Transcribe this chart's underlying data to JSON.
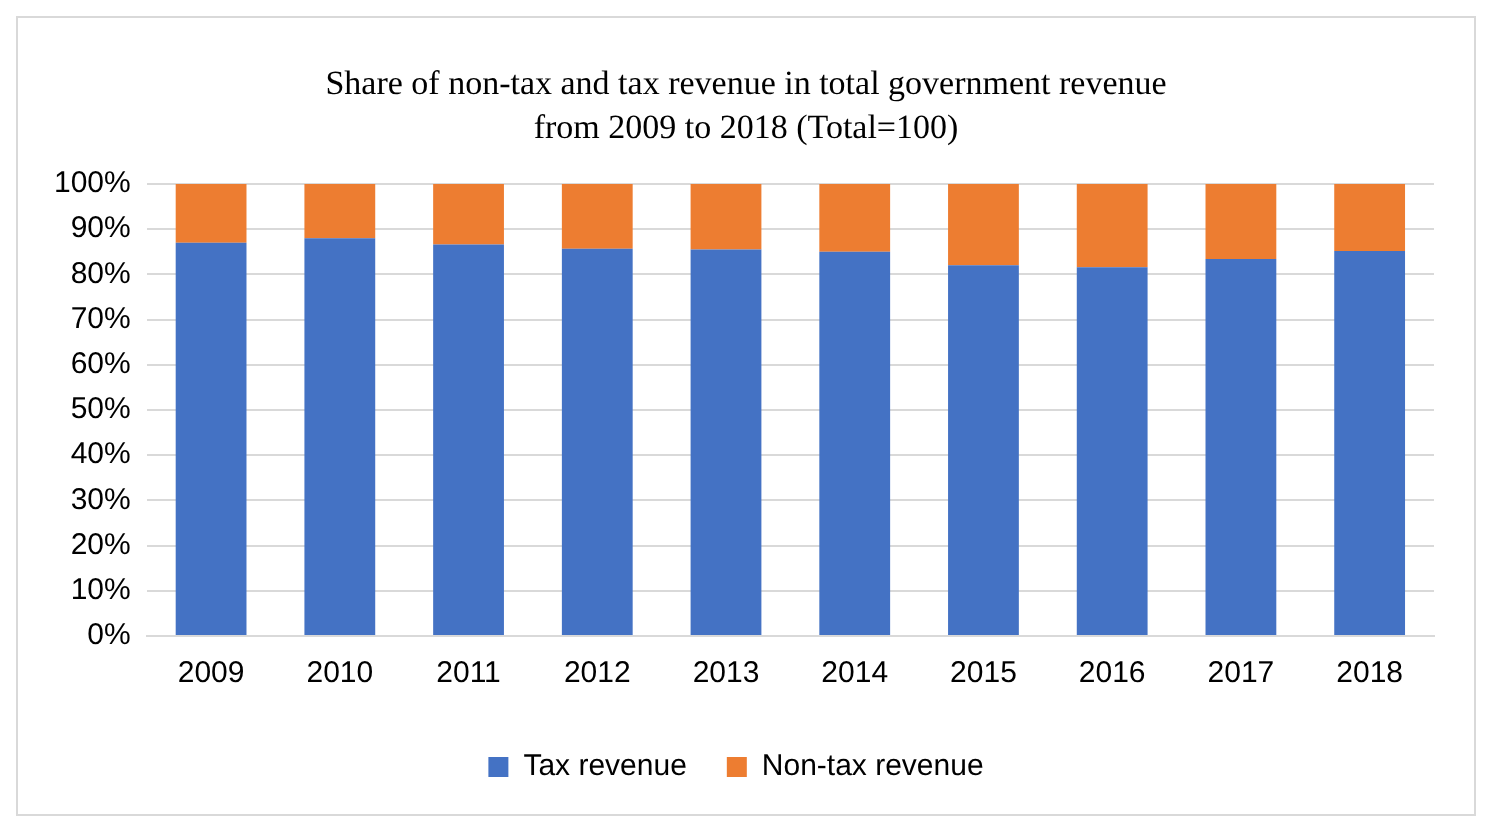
{
  "chart_data": {
    "type": "bar",
    "title": "Share of non-tax and tax revenue in total government revenue from 2009 to 2018 (Total=100)",
    "categories": [
      "2009",
      "2010",
      "2011",
      "2012",
      "2013",
      "2014",
      "2015",
      "2016",
      "2017",
      "2018"
    ],
    "stacked": true,
    "series": [
      {
        "name": "Tax revenue",
        "color": "#4472c4",
        "values": [
          87,
          88,
          86.6,
          85.7,
          85.5,
          85,
          82,
          81.6,
          83.4,
          85.2
        ]
      },
      {
        "name": "Non-tax revenue",
        "color": "#ed7d31",
        "values": [
          13,
          12,
          13.4,
          14.3,
          14.5,
          15,
          18,
          18.4,
          16.6,
          14.8
        ]
      }
    ],
    "ylim": [
      0,
      100
    ],
    "yticks": [
      {
        "value": 0,
        "label": "0%"
      },
      {
        "value": 10,
        "label": "10%"
      },
      {
        "value": 20,
        "label": "20%"
      },
      {
        "value": 30,
        "label": "30%"
      },
      {
        "value": 40,
        "label": "40%"
      },
      {
        "value": 50,
        "label": "50%"
      },
      {
        "value": 60,
        "label": "60%"
      },
      {
        "value": 70,
        "label": "70%"
      },
      {
        "value": 80,
        "label": "80%"
      },
      {
        "value": 90,
        "label": "90%"
      },
      {
        "value": 100,
        "label": "100%"
      }
    ],
    "grid": "y",
    "legend": "bottom"
  }
}
